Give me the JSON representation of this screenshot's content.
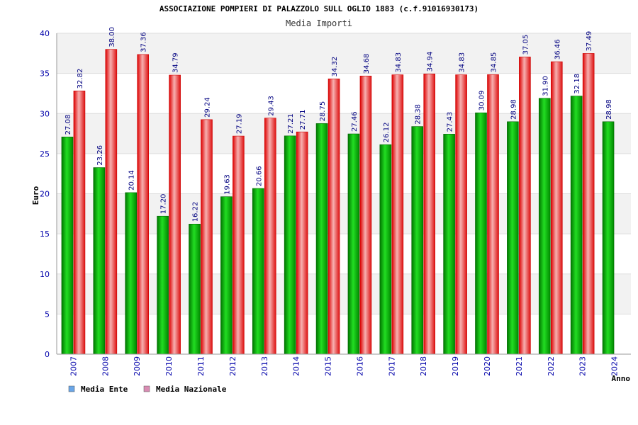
{
  "chart_data": {
    "type": "bar",
    "title": "ASSOCIAZIONE POMPIERI DI PALAZZOLO SULL OGLIO 1883 (c.f.91016930173)",
    "subtitle": "Media Importi",
    "xlabel": "Anno",
    "ylabel": "Euro",
    "ylim": [
      0,
      40
    ],
    "yticks": [
      "0",
      "5",
      "10",
      "15",
      "20",
      "25",
      "30",
      "35",
      "40"
    ],
    "grid": true,
    "legend_position": "bottom-left",
    "categories": [
      "2007",
      "2008",
      "2009",
      "2010",
      "2011",
      "2012",
      "2013",
      "2014",
      "2015",
      "2016",
      "2017",
      "2018",
      "2019",
      "2020",
      "2021",
      "2022",
      "2023",
      "2024"
    ],
    "series": [
      {
        "name": "Media Ente",
        "color": "#00bb00",
        "legend_color": "#6aa6e8",
        "values": [
          27.08,
          23.26,
          20.14,
          17.2,
          16.22,
          19.63,
          20.66,
          27.21,
          28.75,
          27.46,
          26.12,
          28.38,
          27.43,
          30.09,
          28.98,
          31.9,
          32.18,
          28.98
        ],
        "labels": [
          "27.08",
          "23.26",
          "20.14",
          "17.20",
          "16.22",
          "19.63",
          "20.66",
          "27.21",
          "28.75",
          "27.46",
          "26.12",
          "28.38",
          "27.43",
          "30.09",
          "28.98",
          "31.90",
          "32.18",
          "28.98"
        ]
      },
      {
        "name": "Media Nazionale",
        "color": "#ee2222",
        "legend_color": "#d98cb3",
        "values": [
          32.82,
          38.0,
          37.36,
          34.79,
          29.24,
          27.19,
          29.43,
          27.71,
          34.32,
          34.68,
          34.83,
          34.94,
          34.83,
          34.85,
          37.05,
          36.46,
          37.49,
          null
        ],
        "labels": [
          "32.82",
          "38.00",
          "37.36",
          "34.79",
          "29.24",
          "27.19",
          "29.43",
          "27.71",
          "34.32",
          "34.68",
          "34.83",
          "34.94",
          "34.83",
          "34.85",
          "37.05",
          "36.46",
          "37.49",
          ""
        ]
      }
    ]
  }
}
